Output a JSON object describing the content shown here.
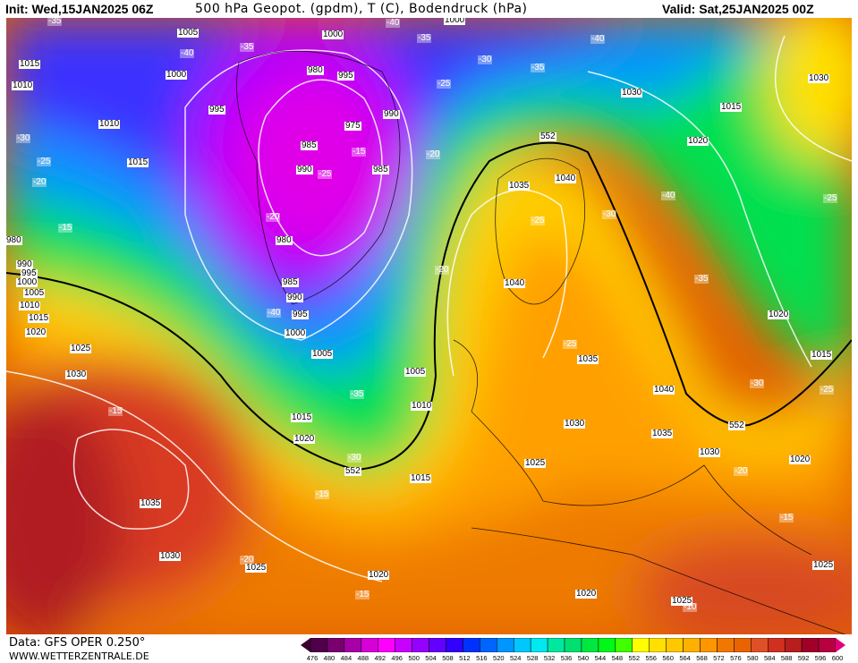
{
  "header": {
    "init": "Init: Wed,15JAN2025 06Z",
    "title": "500 hPa Geopot. (gpdm), T (C), Bodendruck (hPa)",
    "valid": "Valid: Sat,25JAN2025 00Z"
  },
  "footer": {
    "data_source": "Data: GFS OPER 0.250°",
    "website": "WWW.WETTERZENTRALE.DE"
  },
  "colorbar": {
    "ticks": [
      "476",
      "480",
      "484",
      "488",
      "492",
      "496",
      "500",
      "504",
      "508",
      "512",
      "516",
      "520",
      "524",
      "528",
      "532",
      "536",
      "540",
      "544",
      "548",
      "552",
      "556",
      "560",
      "564",
      "568",
      "572",
      "576",
      "580",
      "584",
      "588",
      "592",
      "596",
      "600"
    ],
    "colors": [
      "#50004a",
      "#7a0070",
      "#a800a8",
      "#d800d8",
      "#ff00ff",
      "#c800ff",
      "#9600ff",
      "#6400ff",
      "#3200ff",
      "#0032ff",
      "#0064ff",
      "#0096ff",
      "#00c8ff",
      "#00e8f0",
      "#00e8a0",
      "#00e070",
      "#00e840",
      "#00f818",
      "#40ff00",
      "#ffff00",
      "#ffe000",
      "#ffc800",
      "#ffb000",
      "#ff9600",
      "#f07800",
      "#e86400",
      "#e05028",
      "#d03020",
      "#b81e1e",
      "#a00028",
      "#b80040"
    ]
  },
  "pressure_labels": [
    "1005",
    "1000",
    "1000",
    "1015",
    "1010",
    "1000",
    "980",
    "995",
    "995",
    "1010",
    "1015",
    "975",
    "990",
    "985",
    "990",
    "985",
    "980",
    "985",
    "990",
    "995",
    "1000",
    "1005",
    "1030",
    "1015",
    "1020",
    "1030",
    "552",
    "1035",
    "1040",
    "1040",
    "1035",
    "1040",
    "1030",
    "1035",
    "1030",
    "552",
    "1020",
    "1015",
    "1020",
    "1025",
    "1025",
    "1020",
    "1020",
    "1025",
    "1015",
    "1010",
    "1005",
    "1015",
    "1020",
    "552",
    "1025",
    "1030",
    "1035",
    "1030",
    "1025",
    "1020",
    "1015",
    "1010",
    "1005",
    "1000",
    "995",
    "990",
    "980"
  ],
  "temperature_labels": [
    "-35",
    "-40",
    "-35",
    "-35",
    "-40",
    "-30",
    "-35",
    "-40",
    "-25",
    "-20",
    "-25",
    "-20",
    "-15",
    "-30",
    "-15",
    "-25",
    "-20",
    "-40",
    "-25",
    "-30",
    "-40",
    "-25",
    "-35",
    "-20",
    "-25",
    "-35",
    "-30",
    "-15",
    "-15",
    "-20",
    "-15",
    "-10",
    "-15",
    "-20",
    "-30",
    "-25"
  ]
}
